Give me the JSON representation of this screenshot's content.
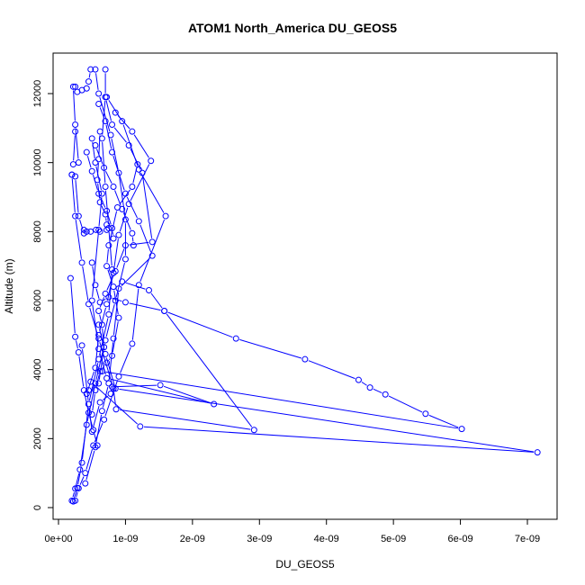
{
  "chart_data": {
    "type": "line",
    "title": "ATOM1 North_America DU_GEOS5",
    "xlabel": "DU_GEOS5",
    "ylabel": "Altitude (m)",
    "xlim": [
      0,
      7.3e-09
    ],
    "ylim": [
      0,
      12800
    ],
    "x_ticks": [
      0,
      1e-09,
      2e-09,
      3e-09,
      4e-09,
      5e-09,
      6e-09,
      7e-09
    ],
    "x_tick_labels": [
      "0e+00",
      "1e-09",
      "2e-09",
      "3e-09",
      "4e-09",
      "5e-09",
      "6e-09",
      "7e-09"
    ],
    "y_ticks": [
      0,
      2000,
      4000,
      6000,
      8000,
      10000,
      12000
    ],
    "y_tick_labels": [
      "0",
      "2000",
      "4000",
      "6000",
      "8000",
      "10000",
      "12000"
    ],
    "series_color": "#0000ff",
    "grid": false,
    "series": [
      {
        "points": [
          [
            2e-10,
            200
          ],
          [
            2.5e-10,
            550
          ],
          [
            3.2e-10,
            1100
          ],
          [
            4.2e-10,
            2400
          ],
          [
            5.5e-10,
            3600
          ],
          [
            7e-10,
            4850
          ],
          [
            8.5e-10,
            6000
          ],
          [
            1e-09,
            7200
          ],
          [
            1e-09,
            8350
          ],
          [
            9e-10,
            9700
          ],
          [
            7.8e-10,
            10800
          ],
          [
            6e-10,
            12000
          ],
          [
            5.5e-10,
            12700
          ]
        ]
      },
      {
        "points": [
          [
            2.2e-10,
            180
          ],
          [
            2.8e-10,
            570
          ],
          [
            3.5e-10,
            1300
          ],
          [
            4.5e-10,
            3000
          ],
          [
            6e-10,
            4300
          ],
          [
            7.5e-10,
            5600
          ],
          [
            8e-10,
            6900
          ],
          [
            7.5e-10,
            8100
          ],
          [
            7e-10,
            9300
          ],
          [
            6.5e-10,
            10700
          ],
          [
            7e-10,
            11900
          ],
          [
            7e-10,
            12700
          ]
        ]
      },
      {
        "points": [
          [
            2.5e-10,
            200
          ],
          [
            3e-10,
            560
          ],
          [
            4e-10,
            1000
          ],
          [
            5.2e-10,
            1800
          ],
          [
            6.8e-10,
            2550
          ],
          [
            9e-10,
            3800
          ],
          [
            1.1e-09,
            4750
          ],
          [
            1.2e-09,
            6450
          ],
          [
            1.6e-09,
            8450
          ],
          [
            1.2e-09,
            9800
          ],
          [
            9.5e-10,
            11200
          ],
          [
            7.2e-10,
            11900
          ]
        ]
      },
      {
        "points": [
          [
            4e-10,
            700
          ],
          [
            5.5e-10,
            1750
          ],
          [
            6.5e-10,
            2800
          ],
          [
            7.5e-10,
            3600
          ],
          [
            8.2e-10,
            4900
          ],
          [
            9e-10,
            6350
          ],
          [
            1.4e-09,
            7300
          ],
          [
            1.2e-09,
            8300
          ],
          [
            1e-09,
            9100
          ],
          [
            8e-10,
            10300
          ],
          [
            7e-10,
            11200
          ],
          [
            6e-10,
            11700
          ]
        ]
      },
      {
        "points": [
          [
            1.8e-10,
            6650
          ],
          [
            2.5e-10,
            4950
          ],
          [
            3e-10,
            4500
          ],
          [
            3.8e-10,
            3400
          ],
          [
            4.5e-10,
            2750
          ],
          [
            5.2e-10,
            2250
          ],
          [
            5.8e-10,
            1800
          ]
        ]
      },
      {
        "points": [
          [
            2e-10,
            9650
          ],
          [
            2.5e-10,
            8450
          ],
          [
            3.5e-10,
            7100
          ],
          [
            4.5e-10,
            5900
          ],
          [
            6e-10,
            4900
          ],
          [
            8.2e-10,
            3450
          ],
          [
            8.6e-10,
            2850
          ],
          [
            2.92e-09,
            2250
          ],
          [
            1.58e-09,
            5700
          ],
          [
            1e-09,
            5950
          ],
          [
            7.5e-10,
            6100
          ],
          [
            6.2e-10,
            5950
          ],
          [
            5.5e-10,
            6450
          ],
          [
            5e-10,
            7100
          ]
        ]
      },
      {
        "points": [
          [
            4.5e-10,
            3400
          ],
          [
            6e-10,
            3600
          ],
          [
            6.8e-10,
            4650
          ],
          [
            6.5e-10,
            5300
          ],
          [
            6e-10,
            5700
          ],
          [
            7e-10,
            6200
          ],
          [
            8.5e-10,
            6850
          ],
          [
            1e-09,
            7600
          ],
          [
            1.4e-09,
            7700
          ],
          [
            1.25e-09,
            9700
          ],
          [
            1.05e-09,
            10500
          ],
          [
            8e-10,
            11100
          ],
          [
            7e-10,
            11900
          ]
        ]
      },
      {
        "points": [
          [
            4.2e-10,
            3300
          ],
          [
            5.5e-10,
            4050
          ],
          [
            6e-10,
            5000
          ],
          [
            7.2e-10,
            5900
          ],
          [
            8.2e-10,
            6800
          ],
          [
            9e-10,
            7900
          ],
          [
            1.05e-09,
            8800
          ],
          [
            1.38e-09,
            10050
          ],
          [
            1.1e-09,
            10900
          ],
          [
            8.5e-10,
            11450
          ]
        ]
      },
      {
        "points": [
          [
            3.5e-10,
            4700
          ],
          [
            4.5e-10,
            3000
          ],
          [
            5e-10,
            2200
          ],
          [
            6.2e-10,
            3050
          ],
          [
            7.8e-10,
            3300
          ],
          [
            8e-10,
            3500
          ],
          [
            1.52e-09,
            3550
          ],
          [
            2.32e-09,
            3000
          ],
          [
            7.2e-10,
            3750
          ],
          [
            6e-10,
            4600
          ],
          [
            5e-10,
            6000
          ],
          [
            6e-10,
            8050
          ],
          [
            6.5e-10,
            9100
          ],
          [
            5.5e-10,
            10000
          ],
          [
            5e-10,
            10700
          ]
        ]
      },
      {
        "points": [
          [
            4.8e-10,
            3650
          ],
          [
            1.22e-09,
            2350
          ],
          [
            7.15e-09,
            1600
          ],
          [
            8.5e-10,
            3450
          ],
          [
            7e-10,
            4450
          ],
          [
            6e-10,
            5300
          ]
        ]
      },
      {
        "points": [
          [
            6.5e-10,
            3950
          ],
          [
            6.02e-09,
            2280
          ],
          [
            5.48e-09,
            2720
          ],
          [
            4.88e-09,
            3280
          ],
          [
            4.65e-09,
            3480
          ],
          [
            4.48e-09,
            3700
          ],
          [
            3.68e-09,
            4300
          ],
          [
            2.65e-09,
            4900
          ],
          [
            1.58e-09,
            5700
          ],
          [
            1.35e-09,
            6300
          ],
          [
            9.5e-10,
            6550
          ]
        ]
      },
      {
        "points": [
          [
            5e-10,
            2700
          ],
          [
            5.5e-10,
            3400
          ],
          [
            6.2e-10,
            3950
          ],
          [
            7.2e-10,
            4200
          ],
          [
            8e-10,
            4400
          ],
          [
            9e-10,
            5500
          ],
          [
            8.2e-10,
            6400
          ],
          [
            7.2e-10,
            7000
          ],
          [
            7.5e-10,
            7600
          ],
          [
            8.8e-10,
            8700
          ],
          [
            1.1e-09,
            9300
          ],
          [
            1.18e-09,
            9950
          ]
        ]
      },
      {
        "points": [
          [
            3.8e-10,
            8050
          ],
          [
            4.2e-10,
            8000
          ],
          [
            4.8e-10,
            8000
          ],
          [
            5.6e-10,
            8050
          ],
          [
            6.2e-10,
            8000
          ],
          [
            7.2e-10,
            8050
          ]
        ]
      },
      {
        "points": [
          [
            2e-10,
            9650
          ],
          [
            2.5e-10,
            9600
          ],
          [
            3e-10,
            8450
          ],
          [
            3.8e-10,
            7950
          ]
        ]
      },
      {
        "points": [
          [
            2.5e-10,
            12200
          ],
          [
            2.8e-10,
            12050
          ],
          [
            3.5e-10,
            12100
          ],
          [
            4.2e-10,
            12150
          ],
          [
            4.5e-10,
            12350
          ],
          [
            4.8e-10,
            12700
          ]
        ]
      },
      {
        "points": [
          [
            2.2e-10,
            12200
          ],
          [
            2.5e-10,
            11100
          ],
          [
            3e-10,
            10000
          ],
          [
            2.2e-10,
            9950
          ],
          [
            2.5e-10,
            10900
          ]
        ]
      },
      {
        "points": [
          [
            4.2e-10,
            10300
          ],
          [
            5e-10,
            9750
          ],
          [
            6e-10,
            9100
          ],
          [
            7.2e-10,
            8600
          ],
          [
            8e-10,
            8100
          ],
          [
            8.2e-10,
            7800
          ]
        ]
      },
      {
        "points": [
          [
            5.5e-10,
            10500
          ],
          [
            6.8e-10,
            9850
          ],
          [
            8.2e-10,
            9300
          ],
          [
            9.5e-10,
            8650
          ],
          [
            1.1e-09,
            7950
          ],
          [
            1.12e-09,
            7600
          ]
        ]
      },
      {
        "points": [
          [
            6.2e-10,
            10900
          ],
          [
            6e-10,
            10100
          ],
          [
            5.8e-10,
            9500
          ],
          [
            6.2e-10,
            8850
          ],
          [
            7e-10,
            8500
          ],
          [
            7.2e-10,
            8200
          ]
        ]
      }
    ]
  }
}
